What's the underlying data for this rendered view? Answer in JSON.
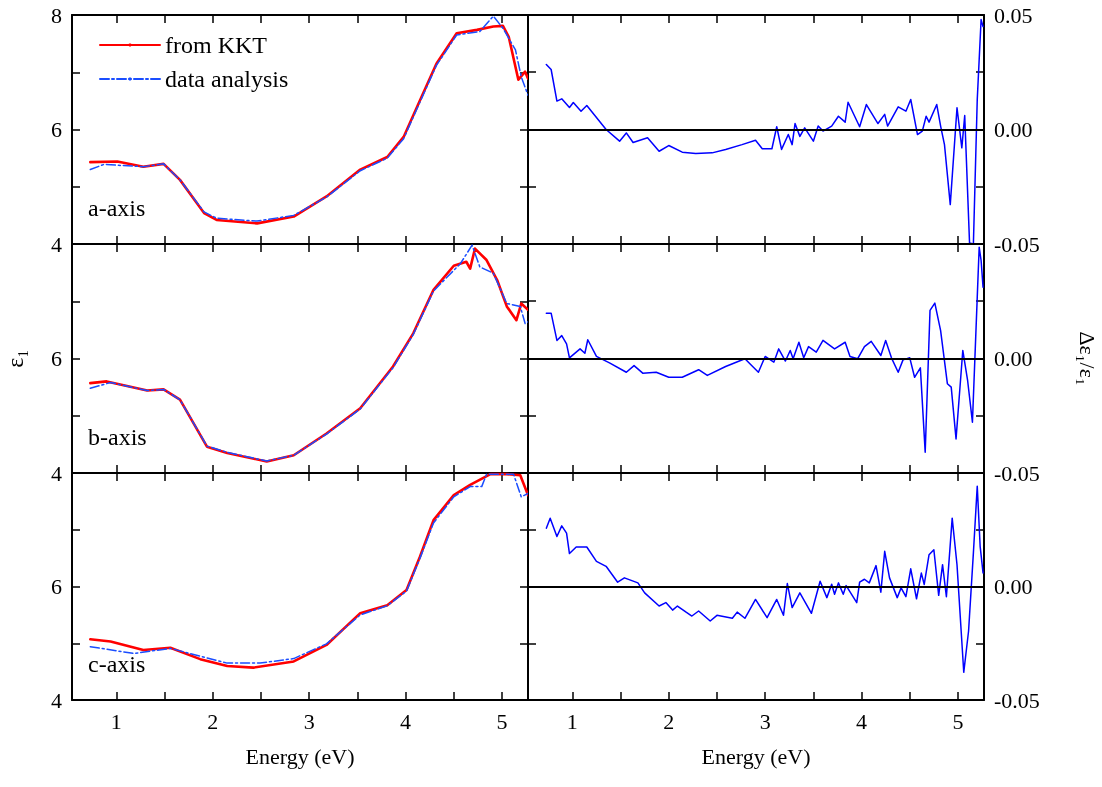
{
  "chart_data": [
    {
      "type": "line",
      "xlim": [
        0.54,
        5.27
      ],
      "xticks": [
        1,
        {
          "value": 1.5,
          "label": null
        },
        2,
        {
          "value": 2.5,
          "label": null
        },
        3,
        {
          "value": 3.5,
          "label": null
        },
        4,
        {
          "value": 4.5,
          "label": null
        },
        5
      ],
      "ylim": [
        4,
        8
      ],
      "yticks": [
        4,
        {
          "value": 5,
          "label": null
        },
        6,
        {
          "value": 7,
          "label": null
        },
        8
      ],
      "tick_labels": "y",
      "marker": "none",
      "legend": "top left",
      "annotations": [
        "a-axis"
      ],
      "series": [
        {
          "name": "from KKT",
          "color": "#ff0000",
          "line_style": "solid",
          "x": [
            0.73,
            1.01,
            1.28,
            1.49,
            1.66,
            1.91,
            2.04,
            2.46,
            2.84,
            3.18,
            3.53,
            3.81,
            3.98,
            4.15,
            4.32,
            4.53,
            4.74,
            4.91,
            5.01,
            5.07,
            5.17,
            5.24,
            5.27
          ],
          "values": [
            5.43,
            5.44,
            5.35,
            5.4,
            5.12,
            4.54,
            4.42,
            4.36,
            4.48,
            4.83,
            5.3,
            5.52,
            5.87,
            6.51,
            7.15,
            7.68,
            7.74,
            7.8,
            7.81,
            7.62,
            6.87,
            7.01,
            6.89
          ]
        },
        {
          "name": "data analysis",
          "color": "#1a4dff",
          "line_style": "dashed",
          "x": [
            0.73,
            0.87,
            1.28,
            1.49,
            1.66,
            1.91,
            2.04,
            2.46,
            2.84,
            3.18,
            3.53,
            3.81,
            3.98,
            4.15,
            4.32,
            4.53,
            4.77,
            4.91,
            5.01,
            5.14,
            5.2,
            5.27
          ],
          "values": [
            5.3,
            5.39,
            5.35,
            5.4,
            5.12,
            4.56,
            4.45,
            4.4,
            4.5,
            4.82,
            5.28,
            5.5,
            5.84,
            6.48,
            7.12,
            7.65,
            7.71,
            7.98,
            7.77,
            7.39,
            6.92,
            6.6
          ]
        }
      ]
    },
    {
      "type": "line",
      "xlim": [
        0.54,
        5.27
      ],
      "xticks": [
        1,
        {
          "value": 1.5,
          "label": null
        },
        2,
        {
          "value": 2.5,
          "label": null
        },
        3,
        {
          "value": 3.5,
          "label": null
        },
        4,
        {
          "value": 4.5,
          "label": null
        },
        5
      ],
      "y2lim": [
        -0.05,
        0.05
      ],
      "y2ticks": [
        {
          "value": -0.05,
          "label": "-0.05"
        },
        {
          "value": -0.025,
          "label": null
        },
        {
          "value": 0,
          "label": "0.00"
        },
        {
          "value": 0.025,
          "label": null
        },
        {
          "value": 0.05,
          "label": "0.05"
        }
      ],
      "tick_labels": "y",
      "marker": "none",
      "ref_lines": [
        {
          "axis": "y2",
          "value": 0,
          "color": "#000000"
        }
      ],
      "series": [
        {
          "color": "#0000ff",
          "axis": "y2",
          "x": [
            0.73,
            0.78,
            0.84,
            0.89,
            0.97,
            1.01,
            1.09,
            1.15,
            1.35,
            1.49,
            1.56,
            1.63,
            1.78,
            1.9,
            2.0,
            2.14,
            2.28,
            2.45,
            2.59,
            2.76,
            2.9,
            2.97,
            3.07,
            3.12,
            3.17,
            3.24,
            3.28,
            3.31,
            3.36,
            3.41,
            3.5,
            3.55,
            3.6,
            3.69,
            3.76,
            3.83,
            3.86,
            3.98,
            4.05,
            4.17,
            4.24,
            4.27,
            4.38,
            4.46,
            4.51,
            4.58,
            4.63,
            4.67,
            4.7,
            4.78,
            4.82,
            4.86,
            4.92,
            4.99,
            5.04,
            5.07,
            5.12,
            5.16,
            5.2,
            5.24,
            5.26
          ],
          "values": [
            0.0284,
            0.0262,
            0.0124,
            0.0134,
            0.0096,
            0.0118,
            0.008,
            0.0105,
            0,
            -0.0051,
            -0.0015,
            -0.0057,
            -0.0036,
            -0.0095,
            -0.007,
            -0.0099,
            -0.0105,
            -0.0102,
            -0.0087,
            -0.0066,
            -0.0047,
            -0.0084,
            -0.0084,
            0.0012,
            -0.0087,
            -0.0022,
            -0.0066,
            0.0026,
            -0.003,
            0.0007,
            -0.0051,
            0.0015,
            -0.0007,
            0.0015,
            0.0058,
            0.0032,
            0.0119,
            0.0012,
            0.0109,
            0.0026,
            0.0066,
            0.0015,
            0.0099,
            0.008,
            0.0131,
            -0.0022,
            -0.0007,
            0.0058,
            0.0032,
            0.0109,
            0.0015,
            -0.0066,
            -0.0328,
            0.0095,
            -0.008,
            0.0061,
            -0.0495,
            -0.05,
            0.0131,
            0.048,
            0.045
          ]
        }
      ]
    },
    {
      "type": "line",
      "xlim": [
        0.54,
        5.27
      ],
      "xticks": [
        1,
        {
          "value": 1.5,
          "label": null
        },
        2,
        {
          "value": 2.5,
          "label": null
        },
        3,
        {
          "value": 3.5,
          "label": null
        },
        4,
        {
          "value": 4.5,
          "label": null
        },
        5
      ],
      "ylim": [
        4,
        8
      ],
      "yticks": [
        4,
        {
          "value": 5,
          "label": null
        },
        6,
        {
          "value": 7,
          "label": null
        },
        {
          "value": 8,
          "label": null
        }
      ],
      "tick_labels": "y",
      "marker": "none",
      "ylabel": "ε₁",
      "annotations": [
        "b-axis"
      ],
      "series": [
        {
          "color": "#ff0000",
          "line_style": "solid",
          "x": [
            0.73,
            0.9,
            1.32,
            1.49,
            1.66,
            1.94,
            2.15,
            2.56,
            2.84,
            3.18,
            3.53,
            3.87,
            4.08,
            4.29,
            4.5,
            4.63,
            4.67,
            4.72,
            4.84,
            4.95,
            5.05,
            5.15,
            5.2,
            5.27
          ],
          "values": [
            5.57,
            5.6,
            5.44,
            5.46,
            5.28,
            4.46,
            4.35,
            4.2,
            4.31,
            4.69,
            5.13,
            5.86,
            6.44,
            7.2,
            7.62,
            7.69,
            7.57,
            7.92,
            7.72,
            7.37,
            6.91,
            6.67,
            6.96,
            6.85
          ]
        },
        {
          "color": "#1a4dff",
          "line_style": "dashed",
          "x": [
            0.73,
            0.94,
            1.32,
            1.49,
            1.66,
            1.94,
            2.15,
            2.56,
            2.84,
            3.18,
            3.53,
            3.87,
            4.08,
            4.29,
            4.57,
            4.69,
            4.77,
            4.91,
            5.05,
            5.19,
            5.24,
            5.27
          ],
          "values": [
            5.48,
            5.58,
            5.44,
            5.46,
            5.28,
            4.47,
            4.36,
            4.21,
            4.31,
            4.68,
            5.12,
            5.84,
            6.42,
            7.18,
            7.66,
            7.98,
            7.6,
            7.49,
            6.96,
            6.91,
            6.61,
            6.64
          ]
        }
      ]
    },
    {
      "type": "line",
      "xlim": [
        0.54,
        5.27
      ],
      "xticks": [
        1,
        {
          "value": 1.5,
          "label": null
        },
        2,
        {
          "value": 2.5,
          "label": null
        },
        3,
        {
          "value": 3.5,
          "label": null
        },
        4,
        {
          "value": 4.5,
          "label": null
        },
        5
      ],
      "y2lim": [
        -0.05,
        0.05
      ],
      "y2ticks": [
        {
          "value": -0.05,
          "label": "-0.05"
        },
        {
          "value": -0.025,
          "label": null
        },
        {
          "value": 0,
          "label": "0.00"
        },
        {
          "value": 0.025,
          "label": null
        },
        {
          "value": 0.05,
          "label": null
        }
      ],
      "tick_labels": "y",
      "marker": "none",
      "y2label": "Δε₁/ε₁",
      "ref_lines": [
        {
          "axis": "y2",
          "value": 0,
          "color": "#000000"
        }
      ],
      "series": [
        {
          "color": "#0000ff",
          "axis": "y2",
          "x": [
            0.73,
            0.78,
            0.84,
            0.89,
            0.94,
            0.97,
            1.08,
            1.13,
            1.16,
            1.25,
            1.39,
            1.56,
            1.64,
            1.73,
            1.87,
            2.0,
            2.14,
            2.31,
            2.4,
            2.59,
            2.79,
            2.93,
            3.0,
            3.09,
            3.14,
            3.21,
            3.26,
            3.29,
            3.35,
            3.4,
            3.45,
            3.53,
            3.6,
            3.72,
            3.83,
            3.88,
            3.96,
            4.03,
            4.1,
            4.2,
            4.25,
            4.31,
            4.38,
            4.43,
            4.5,
            4.55,
            4.61,
            4.66,
            4.71,
            4.76,
            4.82,
            4.89,
            4.93,
            4.98,
            5.05,
            5.1,
            5.15,
            5.2,
            5.22,
            5.24,
            5.26
          ],
          "values": [
            0.0198,
            0.0198,
            0.0079,
            0.01,
            0.0064,
            0.0003,
            0.0042,
            0.0023,
            0.0082,
            0.0009,
            -0.002,
            -0.006,
            -0.0031,
            -0.0064,
            -0.006,
            -0.0082,
            -0.0082,
            -0.0049,
            -0.0074,
            -0.0035,
            -0.0001,
            -0.006,
            0.0009,
            -0.0016,
            0.0042,
            -0.0011,
            0.0035,
            -0.0001,
            0.0071,
            0.0003,
            0.0052,
            0.0028,
            0.0079,
            0.0042,
            0.0071,
            0.0009,
            -0.0001,
            0.0052,
            0.0075,
            0.0013,
            0.0079,
            0.0003,
            -0.006,
            -0.0006,
            0.0003,
            -0.0082,
            -0.0041,
            -0.0409,
            0.021,
            0.0242,
            0.0122,
            -0.011,
            -0.0125,
            -0.0351,
            0.0035,
            -0.0096,
            -0.0278,
            0.0268,
            0.0486,
            0.0428,
            0.0311
          ]
        }
      ]
    },
    {
      "type": "line",
      "xlim": [
        0.54,
        5.27
      ],
      "xticks": [
        1,
        {
          "value": 1.5,
          "label": null
        },
        2,
        {
          "value": 2.5,
          "label": null
        },
        3,
        {
          "value": 3.5,
          "label": null
        },
        4,
        {
          "value": 4.5,
          "label": null
        },
        5
      ],
      "ylim": [
        4,
        8
      ],
      "yticks": [
        4,
        {
          "value": 5,
          "label": null
        },
        6,
        {
          "value": 7,
          "label": null
        },
        {
          "value": 8,
          "label": null
        }
      ],
      "marker": "none",
      "xlabel": "Energy (eV)",
      "annotations": [
        "c-axis"
      ],
      "series": [
        {
          "color": "#ff0000",
          "line_style": "solid",
          "x": [
            0.73,
            0.94,
            1.28,
            1.56,
            1.87,
            2.15,
            2.42,
            2.84,
            3.18,
            3.53,
            3.81,
            4.01,
            4.15,
            4.29,
            4.5,
            4.67,
            4.88,
            5.05,
            5.19,
            5.27
          ],
          "values": [
            5.07,
            5.03,
            4.88,
            4.92,
            4.72,
            4.6,
            4.57,
            4.68,
            4.97,
            5.53,
            5.67,
            5.94,
            6.53,
            7.17,
            7.61,
            7.79,
            7.98,
            7.98,
            7.96,
            7.61
          ]
        },
        {
          "color": "#1a4dff",
          "line_style": "dashed",
          "x": [
            0.73,
            1.18,
            1.56,
            2.15,
            2.49,
            2.84,
            3.18,
            3.53,
            3.81,
            4.01,
            4.15,
            4.29,
            4.5,
            4.67,
            4.79,
            4.84,
            5.12,
            5.2,
            5.27
          ],
          "values": [
            4.94,
            4.82,
            4.91,
            4.65,
            4.65,
            4.73,
            4.99,
            5.5,
            5.66,
            5.92,
            6.5,
            7.12,
            7.58,
            7.76,
            7.76,
            7.98,
            7.98,
            7.58,
            7.64
          ]
        }
      ]
    },
    {
      "type": "line",
      "xlim": [
        0.54,
        5.27
      ],
      "xticks": [
        1,
        {
          "value": 1.5,
          "label": null
        },
        2,
        {
          "value": 2.5,
          "label": null
        },
        3,
        {
          "value": 3.5,
          "label": null
        },
        4,
        {
          "value": 4.5,
          "label": null
        },
        5
      ],
      "y2lim": [
        -0.05,
        0.05
      ],
      "y2ticks": [
        {
          "value": -0.05,
          "label": "-0.05"
        },
        {
          "value": -0.025,
          "label": null
        },
        {
          "value": 0,
          "label": "0.00"
        },
        {
          "value": 0.025,
          "label": null
        },
        {
          "value": 0.05,
          "label": null
        }
      ],
      "marker": "none",
      "xlabel": "Energy (eV)",
      "ref_lines": [
        {
          "axis": "y2",
          "value": 0,
          "color": "#000000"
        }
      ],
      "series": [
        {
          "color": "#0000ff",
          "axis": "y2",
          "x": [
            0.73,
            0.77,
            0.84,
            0.89,
            0.94,
            0.97,
            1.04,
            1.15,
            1.25,
            1.35,
            1.47,
            1.54,
            1.68,
            1.75,
            1.9,
            1.97,
            2.04,
            2.09,
            2.18,
            2.24,
            2.31,
            2.43,
            2.5,
            2.66,
            2.71,
            2.79,
            2.9,
            3.02,
            3.12,
            3.19,
            3.23,
            3.28,
            3.36,
            3.48,
            3.57,
            3.64,
            3.69,
            3.72,
            3.76,
            3.81,
            3.84,
            3.95,
            3.98,
            4.03,
            4.08,
            4.15,
            4.2,
            4.24,
            4.29,
            4.37,
            4.41,
            4.46,
            4.51,
            4.57,
            4.62,
            4.65,
            4.7,
            4.75,
            4.8,
            4.84,
            4.88,
            4.94,
            4.99,
            5.06,
            5.11,
            5.16,
            5.2,
            5.23,
            5.26
          ],
          "values": [
            0.0257,
            0.0301,
            0.022,
            0.0267,
            0.0235,
            0.0145,
            0.0174,
            0.0174,
            0.0111,
            0.0089,
            0.0019,
            0.0038,
            0.0016,
            -0.0028,
            -0.0086,
            -0.0071,
            -0.0104,
            -0.0086,
            -0.0113,
            -0.013,
            -0.0108,
            -0.0152,
            -0.0127,
            -0.014,
            -0.0113,
            -0.014,
            -0.0057,
            -0.0137,
            -0.0057,
            -0.0127,
            0.0013,
            -0.0093,
            -0.0028,
            -0.0118,
            0.0023,
            -0.0049,
            0.001,
            -0.0034,
            0.0016,
            -0.0034,
            0.0004,
            -0.0071,
            0.0019,
            0.0032,
            0.0016,
            0.0092,
            -0.0025,
            0.0155,
            0.0038,
            -0.0049,
            -0.0006,
            -0.0045,
            0.0078,
            -0.0054,
            0.0059,
            0.0009,
            0.014,
            0.0162,
            -0.0039,
            0.0096,
            -0.0045,
            0.0301,
            0.0096,
            -0.0378,
            -0.0196,
            0.0148,
            0.0442,
            0.0177,
            0.006
          ]
        }
      ]
    }
  ]
}
